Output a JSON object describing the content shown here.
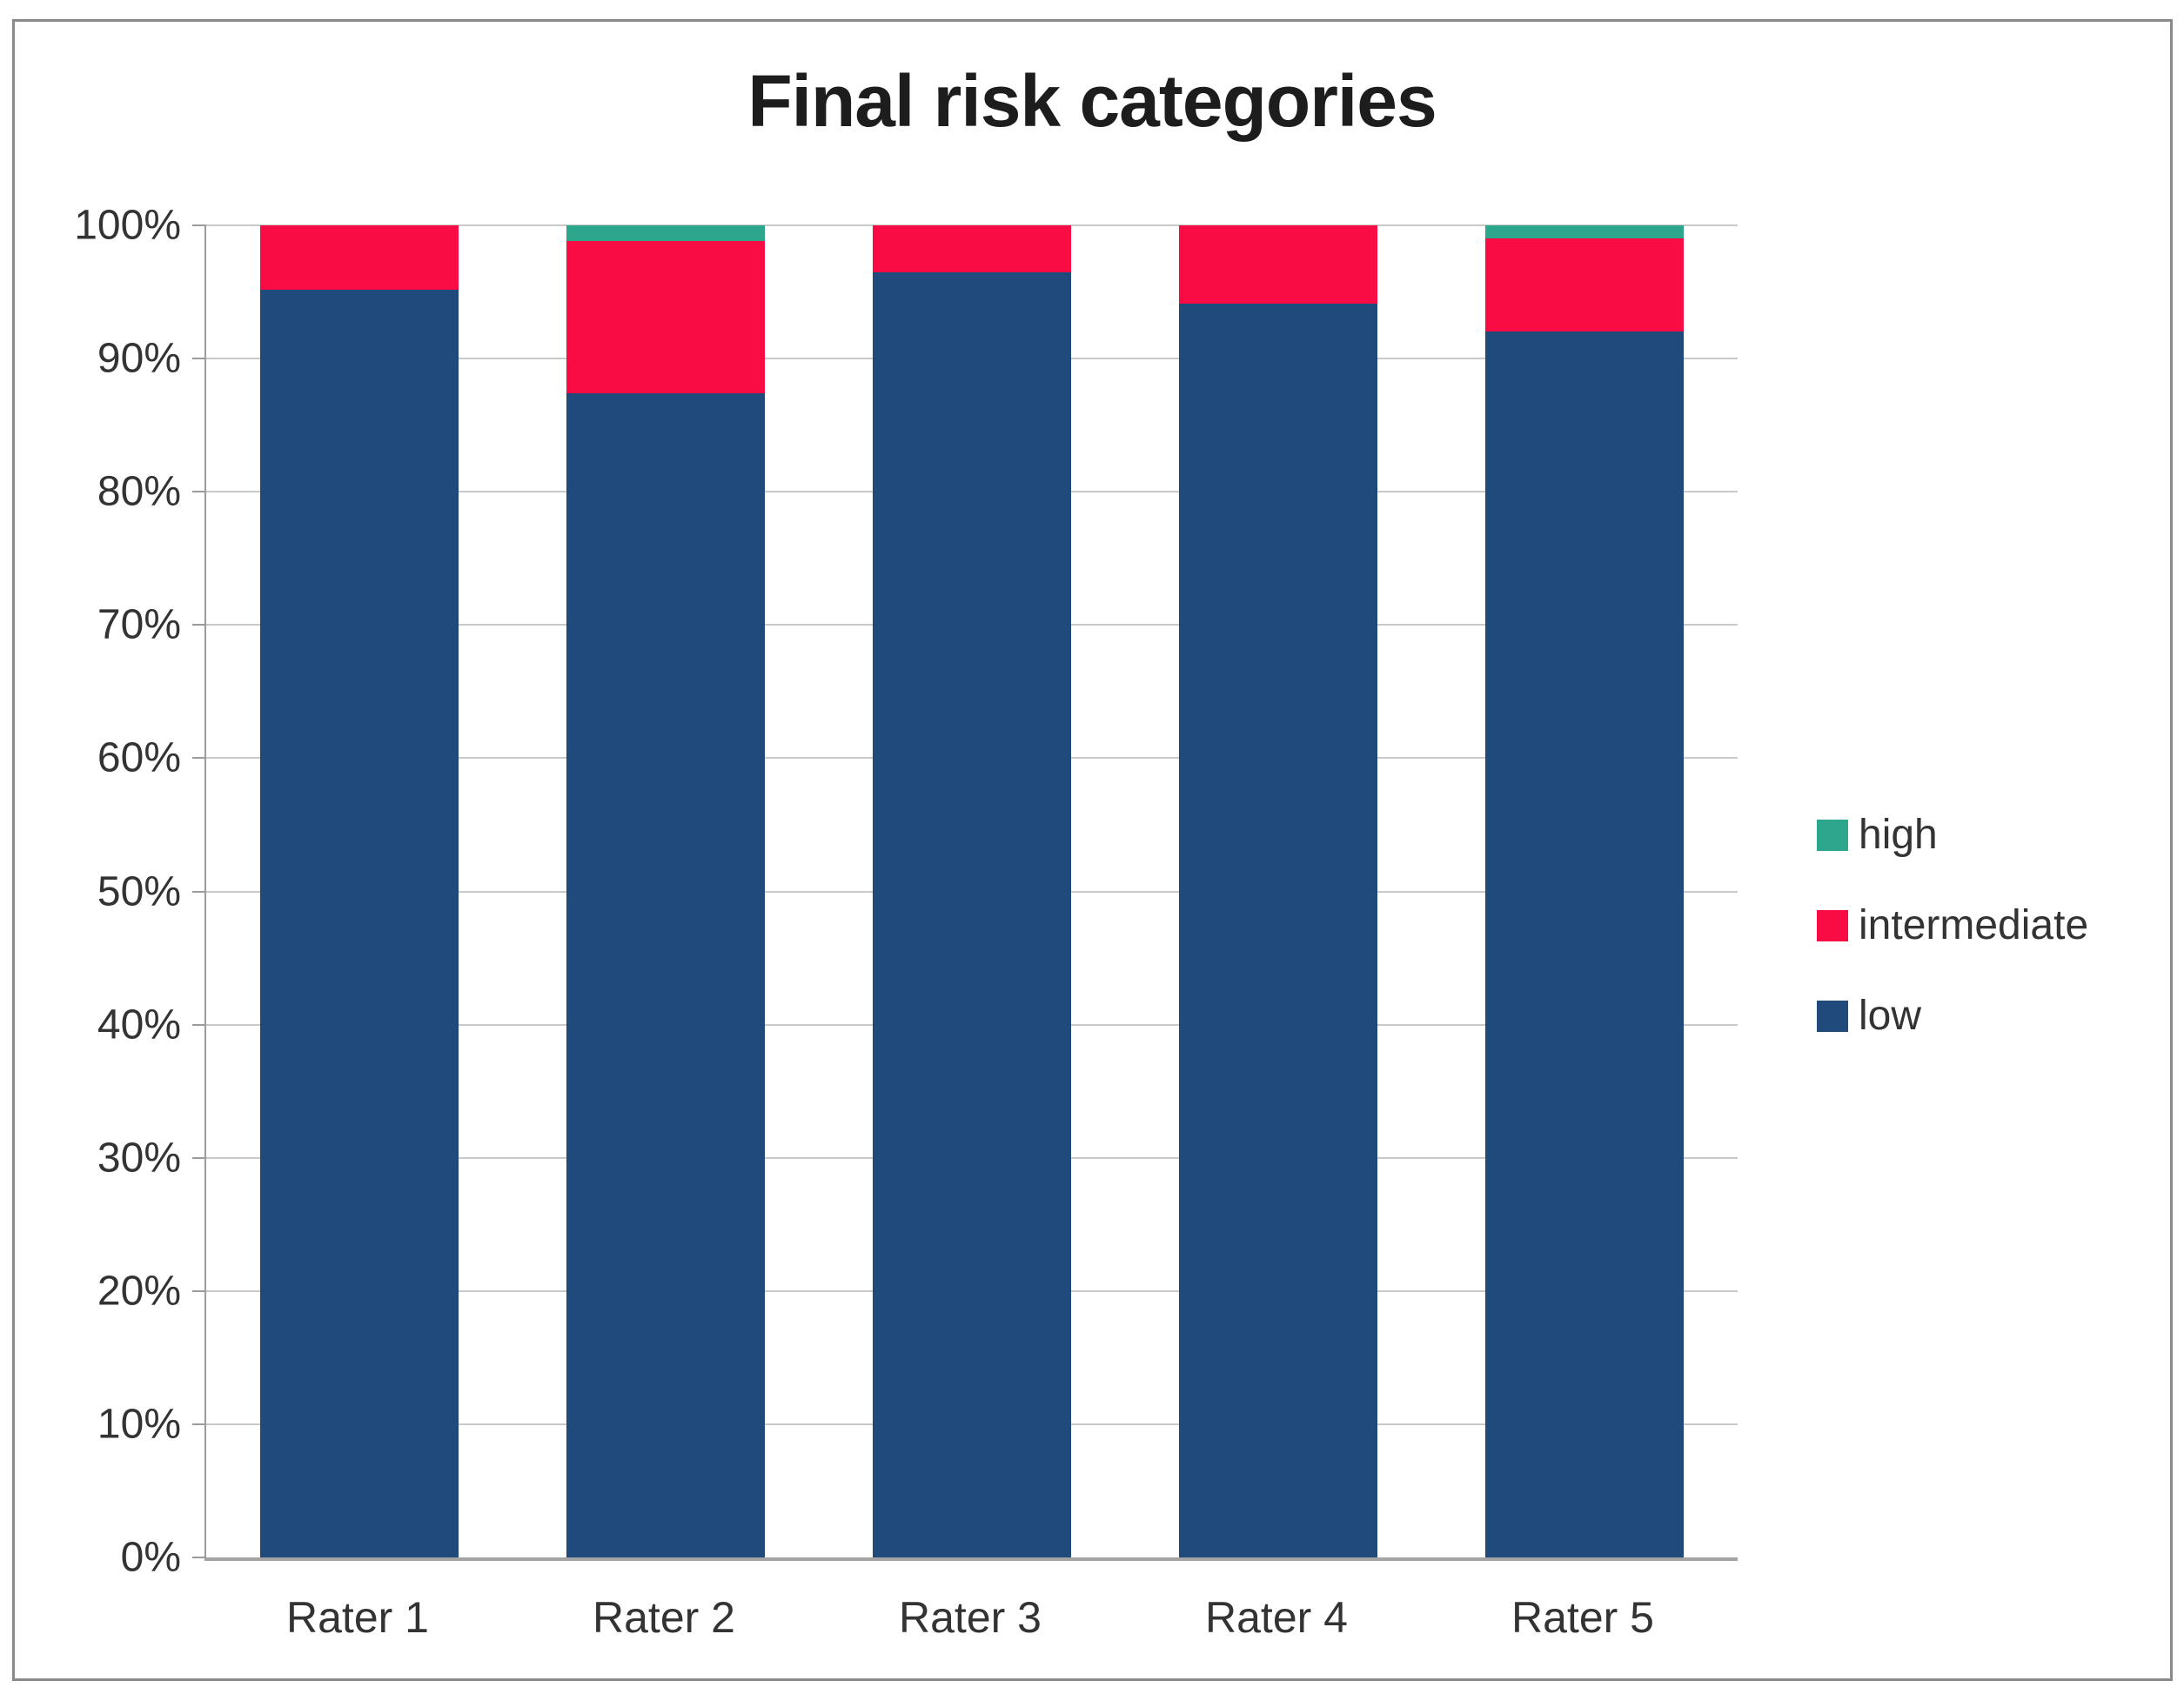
{
  "chart_data": {
    "type": "bar",
    "stacked": true,
    "title": "Final risk categories",
    "categories": [
      "Rater 1",
      "Rater 2",
      "Rater 3",
      "Rater 4",
      "Rater 5"
    ],
    "series": [
      {
        "name": "low",
        "color": "#204a7c",
        "values": [
          95.2,
          87.4,
          96.5,
          94.1,
          92.0
        ]
      },
      {
        "name": "intermediate",
        "color": "#f90b44",
        "values": [
          4.8,
          11.4,
          3.5,
          5.9,
          7.0
        ]
      },
      {
        "name": "high",
        "color": "#2ca68d",
        "values": [
          0,
          1.2,
          0,
          0,
          1.0
        ]
      }
    ],
    "legend": {
      "position": "right",
      "entries": [
        "high",
        "intermediate",
        "low"
      ]
    },
    "y_axis": {
      "min": 0,
      "max": 100,
      "step": 10,
      "tick_labels": [
        "0%",
        "10%",
        "20%",
        "30%",
        "40%",
        "50%",
        "60%",
        "70%",
        "80%",
        "90%",
        "100%"
      ]
    },
    "xlabel": "",
    "ylabel": "",
    "grid": true
  },
  "colors": {
    "gridline": "#c9c9c9",
    "axis_line": "#9b9b9b",
    "baseline": "#a3a3a3",
    "frame_border": "#8a8a8a",
    "title_text": "#1d1d1d",
    "label_text": "#333333",
    "background": "#ffffff"
  }
}
